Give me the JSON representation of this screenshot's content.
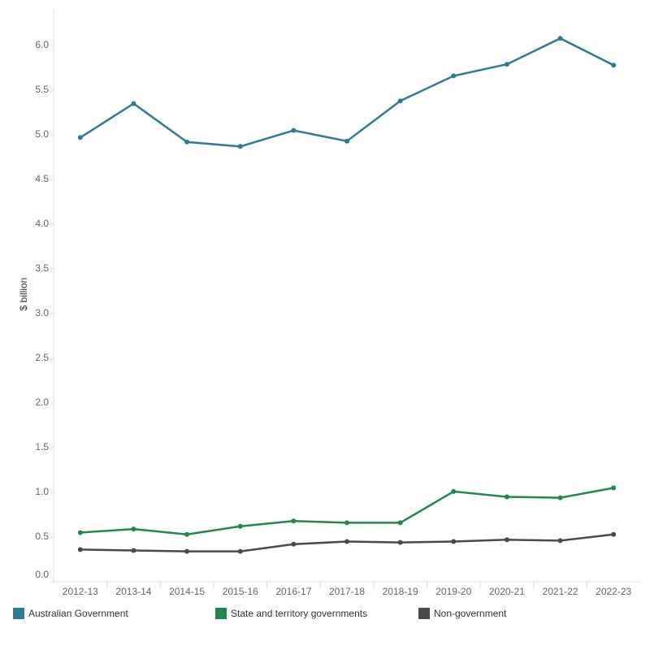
{
  "chart_data": {
    "type": "line",
    "y_label": "$ billion",
    "categories": [
      "2012-13",
      "2013-14",
      "2014-15",
      "2015-16",
      "2016-17",
      "2017-18",
      "2018-19",
      "2019-20",
      "2020-21",
      "2021-22",
      "2022-23"
    ],
    "series": [
      {
        "name": "Australian Government",
        "color": "#2e7b94",
        "values": [
          4.97,
          5.35,
          4.92,
          4.87,
          5.05,
          4.93,
          5.38,
          5.66,
          5.79,
          6.08,
          5.78
        ]
      },
      {
        "name": "State and territory governments",
        "color": "#23874c",
        "values": [
          0.55,
          0.59,
          0.53,
          0.62,
          0.68,
          0.66,
          0.66,
          1.01,
          0.95,
          0.94,
          1.05
        ]
      },
      {
        "name": "Non-government",
        "color": "#4a4a4a",
        "values": [
          0.36,
          0.35,
          0.34,
          0.34,
          0.42,
          0.45,
          0.44,
          0.45,
          0.47,
          0.46,
          0.53
        ]
      }
    ],
    "ylim": [
      0,
      6.4
    ],
    "yticks": [
      {
        "value": 0,
        "label": "0.0"
      },
      0.5,
      {
        "value": 1,
        "label": "1.0"
      },
      1.5,
      {
        "value": 2,
        "label": "2.0"
      },
      2.5,
      {
        "value": 3,
        "label": "3.0"
      },
      3.5,
      {
        "value": 4,
        "label": "4.0"
      },
      4.5,
      {
        "value": 5,
        "label": "5.0"
      },
      5.5,
      {
        "value": 6,
        "label": "6.0"
      }
    ]
  }
}
